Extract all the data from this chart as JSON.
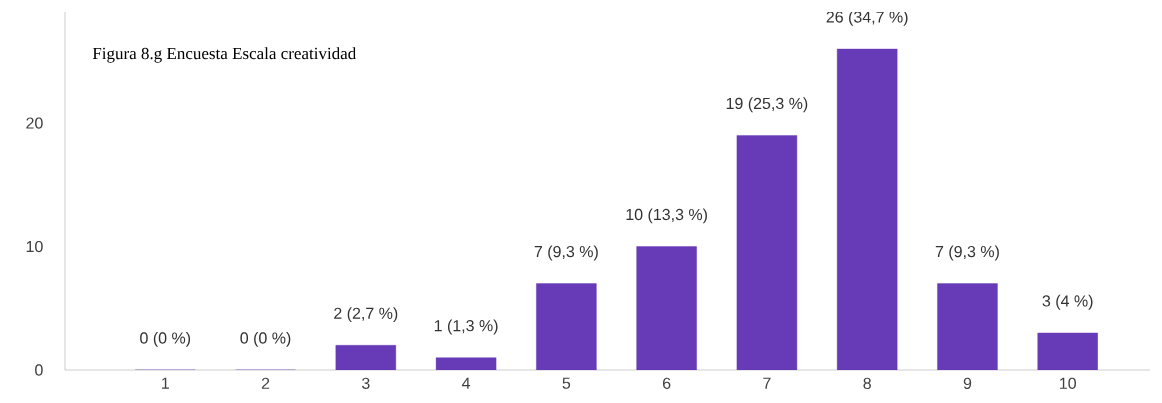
{
  "chart_data": {
    "type": "bar",
    "title": "Figura 8.g Encuesta Escala creatividad",
    "categories": [
      "1",
      "2",
      "3",
      "4",
      "5",
      "6",
      "7",
      "8",
      "9",
      "10"
    ],
    "values": [
      0,
      0,
      2,
      1,
      7,
      10,
      19,
      26,
      7,
      3
    ],
    "value_labels": [
      "0 (0 %)",
      "0 (0 %)",
      "2 (2,7 %)",
      "1 (1,3 %)",
      "7 (9,3 %)",
      "10 (13,3 %)",
      "19 (25,3 %)",
      "26 (34,7 %)",
      "7 (9,3 %)",
      "3 (4 %)"
    ],
    "color": "#673ab7",
    "ylim": [
      0,
      29
    ],
    "yticks": [
      0,
      10,
      20
    ],
    "grid": false
  }
}
